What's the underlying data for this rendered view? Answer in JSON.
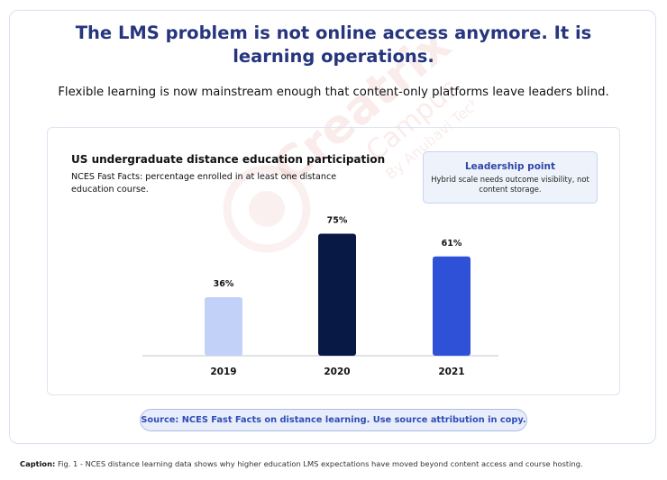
{
  "header": {
    "title": "The LMS problem is not online access anymore. It is learning operations.",
    "subtitle": "Flexible learning is now mainstream enough that content-only platforms leave leaders blind."
  },
  "watermark": {
    "brand": "Creatrix",
    "sub": "Campus",
    "byline": "By Anubavi Tech"
  },
  "callout": {
    "title": "Leadership point",
    "body": "Hybrid scale needs outcome visibility, not content storage."
  },
  "source": "Source: NCES Fast Facts on distance learning. Use source attribution in copy.",
  "caption": {
    "label": "Caption:",
    "text": "Fig. 1 - NCES distance learning data shows why higher education LMS expectations have moved beyond content access and course hosting."
  },
  "chart_data": {
    "type": "bar",
    "title": "US undergraduate distance education participation",
    "subtitle": "NCES Fast Facts: percentage enrolled in at least one distance education course.",
    "categories": [
      "2019",
      "2020",
      "2021"
    ],
    "values": [
      36,
      75,
      61
    ],
    "value_labels": [
      "36%",
      "75%",
      "61%"
    ],
    "colors": [
      "#c2d1f7",
      "#091945",
      "#2f51d8"
    ],
    "ylim": [
      0,
      100
    ],
    "xlabel": "",
    "ylabel": "",
    "grid": false,
    "legend": "none"
  }
}
